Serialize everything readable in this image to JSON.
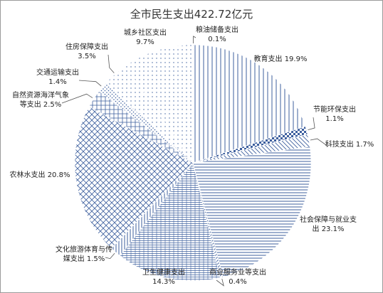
{
  "chart_data": {
    "type": "pie",
    "title": "全市民生支出422.72亿元",
    "slices": [
      {
        "name": "粮油储备支出",
        "value": 0.1,
        "value_label": "0.1%"
      },
      {
        "name": "教育支出",
        "value": 19.9,
        "value_label": "19.9%"
      },
      {
        "name": "节能环保支出",
        "value": 1.1,
        "value_label": "1.1%"
      },
      {
        "name": "科技支出",
        "value": 1.7,
        "value_label": "1.7%"
      },
      {
        "name": "社会保障与就业支出",
        "value": 23.1,
        "value_label": "23.1%"
      },
      {
        "name": "商业服务业等支出",
        "value": 0.4,
        "value_label": "0.4%"
      },
      {
        "name": "卫生健康支出",
        "value": 14.3,
        "value_label": "14.3%"
      },
      {
        "name": "文化旅游体育与传媒支出",
        "value": 1.5,
        "value_label": "1.5%"
      },
      {
        "name": "农林水支出",
        "value": 20.8,
        "value_label": "20.8%"
      },
      {
        "name": "自然资源海洋气象等支出",
        "value": 2.5,
        "value_label": "2.5%"
      },
      {
        "name": "交通运输支出",
        "value": 1.4,
        "value_label": "1.4%"
      },
      {
        "name": "住房保障支出",
        "value": 3.5,
        "value_label": "3.5%"
      },
      {
        "name": "城乡社区支出",
        "value": 9.7,
        "value_label": "9.7%"
      }
    ],
    "legend": "none",
    "colors": {
      "pattern": "#3d5f9e",
      "background": "#ffffff",
      "leader": "#555555"
    }
  }
}
